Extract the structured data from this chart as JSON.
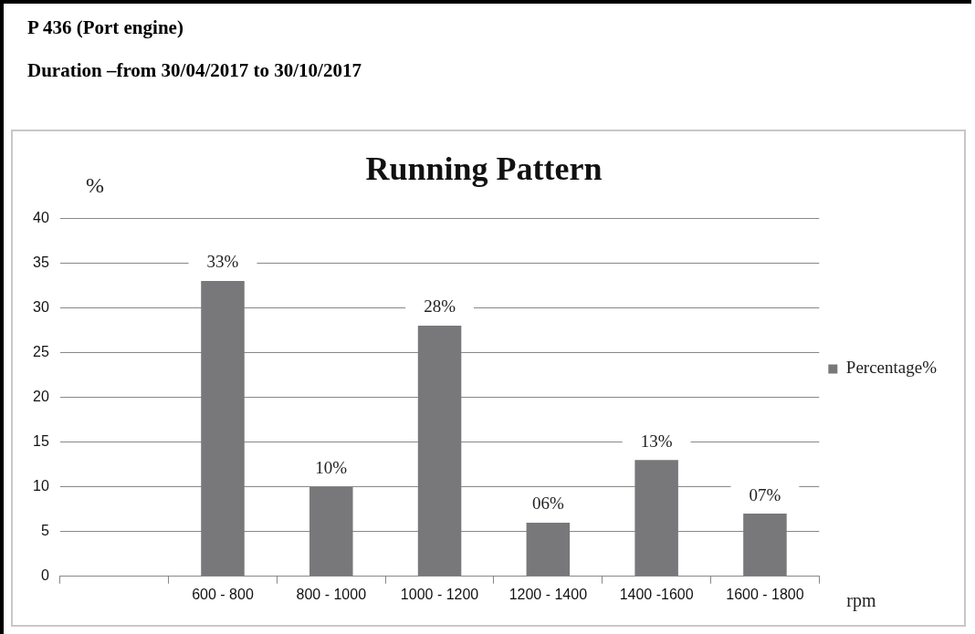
{
  "chart_data": {
    "type": "bar",
    "title": "Running Pattern",
    "ylabel": "%",
    "xlabel": "rpm",
    "annotations": [
      "P 436 (Port engine)",
      "Duration –from 30/04/2017 to 30/10/2017"
    ],
    "categories": [
      null,
      "600 - 800",
      "800 - 1000",
      "1000 - 1200",
      "1200 - 1400",
      "1400 -1600",
      "1600 - 1800"
    ],
    "series": [
      {
        "name": "Percentage%",
        "color": "#78787a",
        "values": [
          null,
          33,
          10,
          28,
          6,
          13,
          7
        ],
        "value_labels": [
          null,
          "33%",
          "10%",
          "28%",
          "06%",
          "13%",
          "07%"
        ]
      }
    ],
    "ylim": [
      0,
      40
    ],
    "yticks": [
      0,
      5,
      10,
      15,
      20,
      25,
      30,
      35,
      40
    ],
    "grid": "y",
    "legend": "right"
  }
}
